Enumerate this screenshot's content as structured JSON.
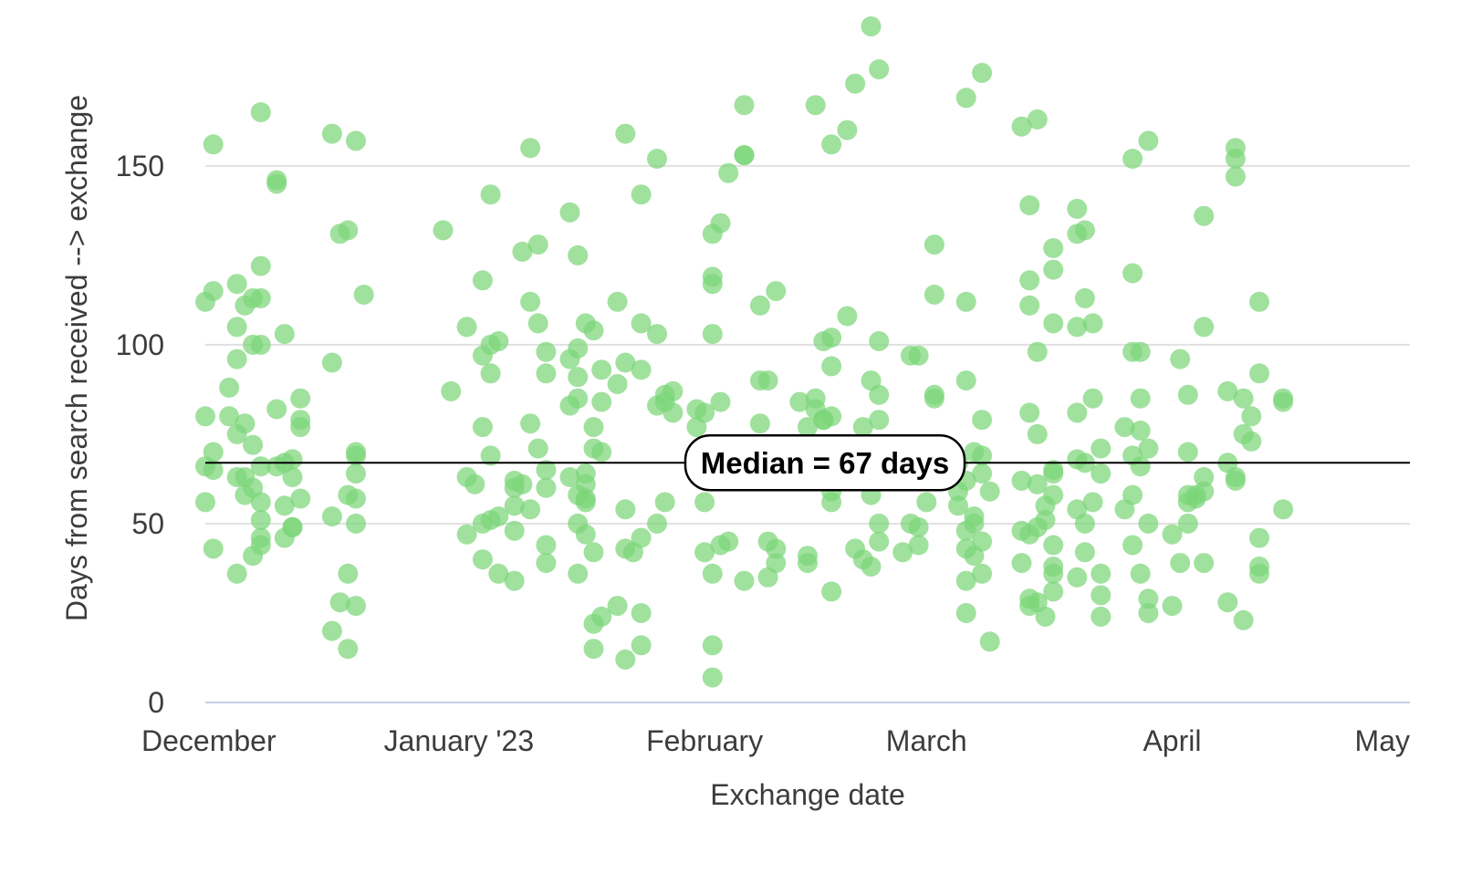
{
  "chart_data": {
    "type": "scatter",
    "title": "",
    "xlabel": "Exchange date",
    "ylabel": "Days from search received --> exchange",
    "x_ticks": [
      "December",
      "January '23",
      "February",
      "March",
      "April",
      "May"
    ],
    "x_range": [
      "2022-11-30",
      "2023-05-01"
    ],
    "y_ticks": [
      0,
      50,
      100,
      150
    ],
    "ylim": [
      0,
      190
    ],
    "grid": true,
    "point_color": "#7bd679",
    "median": {
      "value": 67,
      "label": "Median = 67 days"
    },
    "points": [
      [
        "2022-11-30",
        112
      ],
      [
        "2022-11-30",
        80
      ],
      [
        "2022-11-30",
        66
      ],
      [
        "2022-11-30",
        56
      ],
      [
        "2022-12-01",
        156
      ],
      [
        "2022-12-01",
        115
      ],
      [
        "2022-12-01",
        70
      ],
      [
        "2022-12-01",
        65
      ],
      [
        "2022-12-01",
        43
      ],
      [
        "2022-12-03",
        88
      ],
      [
        "2022-12-03",
        80
      ],
      [
        "2022-12-04",
        117
      ],
      [
        "2022-12-04",
        105
      ],
      [
        "2022-12-04",
        96
      ],
      [
        "2022-12-04",
        75
      ],
      [
        "2022-12-04",
        63
      ],
      [
        "2022-12-04",
        36
      ],
      [
        "2022-12-05",
        111
      ],
      [
        "2022-12-05",
        78
      ],
      [
        "2022-12-05",
        63
      ],
      [
        "2022-12-05",
        58
      ],
      [
        "2022-12-06",
        113
      ],
      [
        "2022-12-06",
        100
      ],
      [
        "2022-12-06",
        72
      ],
      [
        "2022-12-06",
        60
      ],
      [
        "2022-12-06",
        41
      ],
      [
        "2022-12-07",
        165
      ],
      [
        "2022-12-07",
        122
      ],
      [
        "2022-12-07",
        113
      ],
      [
        "2022-12-07",
        100
      ],
      [
        "2022-12-07",
        66
      ],
      [
        "2022-12-07",
        56
      ],
      [
        "2022-12-07",
        51
      ],
      [
        "2022-12-07",
        46
      ],
      [
        "2022-12-07",
        44
      ],
      [
        "2022-12-09",
        146
      ],
      [
        "2022-12-09",
        145
      ],
      [
        "2022-12-09",
        82
      ],
      [
        "2022-12-09",
        66
      ],
      [
        "2022-12-10",
        103
      ],
      [
        "2022-12-10",
        67
      ],
      [
        "2022-12-10",
        55
      ],
      [
        "2022-12-10",
        46
      ],
      [
        "2022-12-11",
        68
      ],
      [
        "2022-12-11",
        63
      ],
      [
        "2022-12-11",
        49
      ],
      [
        "2022-12-11",
        49
      ],
      [
        "2022-12-12",
        85
      ],
      [
        "2022-12-12",
        79
      ],
      [
        "2022-12-12",
        77
      ],
      [
        "2022-12-12",
        57
      ],
      [
        "2022-12-16",
        159
      ],
      [
        "2022-12-16",
        95
      ],
      [
        "2022-12-16",
        52
      ],
      [
        "2022-12-16",
        20
      ],
      [
        "2022-12-17",
        131
      ],
      [
        "2022-12-17",
        28
      ],
      [
        "2022-12-18",
        132
      ],
      [
        "2022-12-18",
        58
      ],
      [
        "2022-12-18",
        36
      ],
      [
        "2022-12-18",
        15
      ],
      [
        "2022-12-19",
        157
      ],
      [
        "2022-12-19",
        70
      ],
      [
        "2022-12-19",
        69
      ],
      [
        "2022-12-19",
        64
      ],
      [
        "2022-12-19",
        57
      ],
      [
        "2022-12-19",
        50
      ],
      [
        "2022-12-19",
        27
      ],
      [
        "2022-12-20",
        114
      ],
      [
        "2022-12-30",
        132
      ],
      [
        "2022-12-31",
        87
      ],
      [
        "2023-01-02",
        105
      ],
      [
        "2023-01-02",
        63
      ],
      [
        "2023-01-02",
        47
      ],
      [
        "2023-01-03",
        61
      ],
      [
        "2023-01-04",
        118
      ],
      [
        "2023-01-04",
        97
      ],
      [
        "2023-01-04",
        77
      ],
      [
        "2023-01-04",
        50
      ],
      [
        "2023-01-04",
        40
      ],
      [
        "2023-01-05",
        142
      ],
      [
        "2023-01-05",
        100
      ],
      [
        "2023-01-05",
        92
      ],
      [
        "2023-01-05",
        69
      ],
      [
        "2023-01-05",
        51
      ],
      [
        "2023-01-06",
        101
      ],
      [
        "2023-01-06",
        52
      ],
      [
        "2023-01-06",
        36
      ],
      [
        "2023-01-08",
        62
      ],
      [
        "2023-01-08",
        60
      ],
      [
        "2023-01-08",
        55
      ],
      [
        "2023-01-08",
        48
      ],
      [
        "2023-01-08",
        34
      ],
      [
        "2023-01-09",
        126
      ],
      [
        "2023-01-09",
        61
      ],
      [
        "2023-01-10",
        155
      ],
      [
        "2023-01-10",
        112
      ],
      [
        "2023-01-10",
        78
      ],
      [
        "2023-01-10",
        54
      ],
      [
        "2023-01-11",
        128
      ],
      [
        "2023-01-11",
        106
      ],
      [
        "2023-01-11",
        71
      ],
      [
        "2023-01-12",
        98
      ],
      [
        "2023-01-12",
        92
      ],
      [
        "2023-01-12",
        65
      ],
      [
        "2023-01-12",
        60
      ],
      [
        "2023-01-12",
        44
      ],
      [
        "2023-01-12",
        39
      ],
      [
        "2023-01-15",
        137
      ],
      [
        "2023-01-15",
        96
      ],
      [
        "2023-01-15",
        83
      ],
      [
        "2023-01-15",
        63
      ],
      [
        "2023-01-16",
        125
      ],
      [
        "2023-01-16",
        99
      ],
      [
        "2023-01-16",
        91
      ],
      [
        "2023-01-16",
        85
      ],
      [
        "2023-01-16",
        58
      ],
      [
        "2023-01-16",
        50
      ],
      [
        "2023-01-16",
        36
      ],
      [
        "2023-01-17",
        106
      ],
      [
        "2023-01-17",
        64
      ],
      [
        "2023-01-17",
        61
      ],
      [
        "2023-01-17",
        57
      ],
      [
        "2023-01-17",
        56
      ],
      [
        "2023-01-17",
        47
      ],
      [
        "2023-01-18",
        104
      ],
      [
        "2023-01-18",
        77
      ],
      [
        "2023-01-18",
        71
      ],
      [
        "2023-01-18",
        42
      ],
      [
        "2023-01-18",
        22
      ],
      [
        "2023-01-18",
        15
      ],
      [
        "2023-01-19",
        93
      ],
      [
        "2023-01-19",
        84
      ],
      [
        "2023-01-19",
        70
      ],
      [
        "2023-01-19",
        24
      ],
      [
        "2023-01-21",
        112
      ],
      [
        "2023-01-21",
        89
      ],
      [
        "2023-01-21",
        27
      ],
      [
        "2023-01-22",
        159
      ],
      [
        "2023-01-22",
        95
      ],
      [
        "2023-01-22",
        54
      ],
      [
        "2023-01-22",
        43
      ],
      [
        "2023-01-22",
        12
      ],
      [
        "2023-01-24",
        142
      ],
      [
        "2023-01-24",
        106
      ],
      [
        "2023-01-24",
        93
      ],
      [
        "2023-01-24",
        46
      ],
      [
        "2023-01-24",
        25
      ],
      [
        "2023-01-24",
        16
      ],
      [
        "2023-01-23",
        42
      ],
      [
        "2023-01-26",
        152
      ],
      [
        "2023-01-26",
        103
      ],
      [
        "2023-01-26",
        83
      ],
      [
        "2023-01-26",
        50
      ],
      [
        "2023-01-27",
        86
      ],
      [
        "2023-01-27",
        84
      ],
      [
        "2023-01-27",
        56
      ],
      [
        "2023-01-28",
        87
      ],
      [
        "2023-01-28",
        81
      ],
      [
        "2023-01-31",
        82
      ],
      [
        "2023-01-31",
        77
      ],
      [
        "2023-02-01",
        81
      ],
      [
        "2023-02-01",
        63
      ],
      [
        "2023-02-01",
        56
      ],
      [
        "2023-02-01",
        42
      ],
      [
        "2023-02-02",
        131
      ],
      [
        "2023-02-02",
        119
      ],
      [
        "2023-02-02",
        117
      ],
      [
        "2023-02-02",
        103
      ],
      [
        "2023-02-02",
        36
      ],
      [
        "2023-02-02",
        16
      ],
      [
        "2023-02-02",
        7
      ],
      [
        "2023-02-03",
        134
      ],
      [
        "2023-02-03",
        84
      ],
      [
        "2023-02-03",
        44
      ],
      [
        "2023-02-04",
        148
      ],
      [
        "2023-02-04",
        45
      ],
      [
        "2023-02-06",
        167
      ],
      [
        "2023-02-06",
        153
      ],
      [
        "2023-02-06",
        153
      ],
      [
        "2023-02-06",
        34
      ],
      [
        "2023-02-08",
        111
      ],
      [
        "2023-02-08",
        90
      ],
      [
        "2023-02-08",
        78
      ],
      [
        "2023-02-09",
        90
      ],
      [
        "2023-02-09",
        45
      ],
      [
        "2023-02-09",
        35
      ],
      [
        "2023-02-10",
        115
      ],
      [
        "2023-02-10",
        43
      ],
      [
        "2023-02-10",
        39
      ],
      [
        "2023-02-13",
        84
      ],
      [
        "2023-02-14",
        77
      ],
      [
        "2023-02-14",
        41
      ],
      [
        "2023-02-14",
        39
      ],
      [
        "2023-02-15",
        167
      ],
      [
        "2023-02-15",
        85
      ],
      [
        "2023-02-15",
        82
      ],
      [
        "2023-02-16",
        101
      ],
      [
        "2023-02-16",
        79
      ],
      [
        "2023-02-16",
        79
      ],
      [
        "2023-02-17",
        156
      ],
      [
        "2023-02-17",
        102
      ],
      [
        "2023-02-17",
        94
      ],
      [
        "2023-02-17",
        80
      ],
      [
        "2023-02-17",
        59
      ],
      [
        "2023-02-17",
        56
      ],
      [
        "2023-02-17",
        31
      ],
      [
        "2023-02-19",
        160
      ],
      [
        "2023-02-19",
        108
      ],
      [
        "2023-02-20",
        173
      ],
      [
        "2023-02-20",
        43
      ],
      [
        "2023-02-21",
        77
      ],
      [
        "2023-02-21",
        40
      ],
      [
        "2023-02-22",
        189
      ],
      [
        "2023-02-22",
        90
      ],
      [
        "2023-02-22",
        58
      ],
      [
        "2023-02-22",
        38
      ],
      [
        "2023-02-23",
        177
      ],
      [
        "2023-02-23",
        101
      ],
      [
        "2023-02-23",
        86
      ],
      [
        "2023-02-23",
        79
      ],
      [
        "2023-02-23",
        50
      ],
      [
        "2023-02-23",
        45
      ],
      [
        "2023-02-26",
        42
      ],
      [
        "2023-02-27",
        97
      ],
      [
        "2023-02-27",
        64
      ],
      [
        "2023-02-27",
        50
      ],
      [
        "2023-02-28",
        97
      ],
      [
        "2023-02-28",
        71
      ],
      [
        "2023-02-28",
        70
      ],
      [
        "2023-02-28",
        62
      ],
      [
        "2023-02-28",
        49
      ],
      [
        "2023-02-28",
        44
      ],
      [
        "2023-03-01",
        56
      ],
      [
        "2023-03-02",
        128
      ],
      [
        "2023-03-02",
        114
      ],
      [
        "2023-03-02",
        86
      ],
      [
        "2023-03-02",
        85
      ],
      [
        "2023-03-05",
        67
      ],
      [
        "2023-03-05",
        59
      ],
      [
        "2023-03-05",
        55
      ],
      [
        "2023-03-06",
        169
      ],
      [
        "2023-03-06",
        112
      ],
      [
        "2023-03-06",
        90
      ],
      [
        "2023-03-06",
        62
      ],
      [
        "2023-03-06",
        48
      ],
      [
        "2023-03-06",
        43
      ],
      [
        "2023-03-06",
        34
      ],
      [
        "2023-03-06",
        25
      ],
      [
        "2023-03-07",
        70
      ],
      [
        "2023-03-07",
        52
      ],
      [
        "2023-03-07",
        50
      ],
      [
        "2023-03-07",
        41
      ],
      [
        "2023-03-08",
        176
      ],
      [
        "2023-03-08",
        79
      ],
      [
        "2023-03-08",
        69
      ],
      [
        "2023-03-08",
        64
      ],
      [
        "2023-03-08",
        45
      ],
      [
        "2023-03-08",
        36
      ],
      [
        "2023-03-09",
        59
      ],
      [
        "2023-03-09",
        17
      ],
      [
        "2023-03-13",
        161
      ],
      [
        "2023-03-13",
        62
      ],
      [
        "2023-03-13",
        48
      ],
      [
        "2023-03-13",
        39
      ],
      [
        "2023-03-14",
        139
      ],
      [
        "2023-03-14",
        118
      ],
      [
        "2023-03-14",
        111
      ],
      [
        "2023-03-14",
        81
      ],
      [
        "2023-03-14",
        47
      ],
      [
        "2023-03-14",
        29
      ],
      [
        "2023-03-14",
        27
      ],
      [
        "2023-03-15",
        163
      ],
      [
        "2023-03-15",
        98
      ],
      [
        "2023-03-15",
        75
      ],
      [
        "2023-03-15",
        61
      ],
      [
        "2023-03-15",
        49
      ],
      [
        "2023-03-15",
        28
      ],
      [
        "2023-03-16",
        55
      ],
      [
        "2023-03-16",
        51
      ],
      [
        "2023-03-16",
        24
      ],
      [
        "2023-03-17",
        127
      ],
      [
        "2023-03-17",
        121
      ],
      [
        "2023-03-17",
        106
      ],
      [
        "2023-03-17",
        65
      ],
      [
        "2023-03-17",
        64
      ],
      [
        "2023-03-17",
        58
      ],
      [
        "2023-03-17",
        44
      ],
      [
        "2023-03-17",
        38
      ],
      [
        "2023-03-17",
        36
      ],
      [
        "2023-03-17",
        31
      ],
      [
        "2023-03-20",
        138
      ],
      [
        "2023-03-20",
        131
      ],
      [
        "2023-03-20",
        105
      ],
      [
        "2023-03-20",
        81
      ],
      [
        "2023-03-20",
        68
      ],
      [
        "2023-03-20",
        54
      ],
      [
        "2023-03-20",
        35
      ],
      [
        "2023-03-21",
        132
      ],
      [
        "2023-03-21",
        113
      ],
      [
        "2023-03-21",
        67
      ],
      [
        "2023-03-21",
        50
      ],
      [
        "2023-03-21",
        42
      ],
      [
        "2023-03-22",
        106
      ],
      [
        "2023-03-22",
        85
      ],
      [
        "2023-03-22",
        56
      ],
      [
        "2023-03-23",
        71
      ],
      [
        "2023-03-23",
        64
      ],
      [
        "2023-03-23",
        36
      ],
      [
        "2023-03-23",
        30
      ],
      [
        "2023-03-23",
        24
      ],
      [
        "2023-03-26",
        77
      ],
      [
        "2023-03-26",
        54
      ],
      [
        "2023-03-27",
        152
      ],
      [
        "2023-03-27",
        120
      ],
      [
        "2023-03-27",
        98
      ],
      [
        "2023-03-27",
        69
      ],
      [
        "2023-03-27",
        58
      ],
      [
        "2023-03-27",
        44
      ],
      [
        "2023-03-28",
        98
      ],
      [
        "2023-03-28",
        85
      ],
      [
        "2023-03-28",
        76
      ],
      [
        "2023-03-28",
        66
      ],
      [
        "2023-03-28",
        36
      ],
      [
        "2023-03-29",
        157
      ],
      [
        "2023-03-29",
        71
      ],
      [
        "2023-03-29",
        50
      ],
      [
        "2023-03-29",
        29
      ],
      [
        "2023-03-29",
        25
      ],
      [
        "2023-04-01",
        47
      ],
      [
        "2023-04-01",
        27
      ],
      [
        "2023-04-02",
        96
      ],
      [
        "2023-04-02",
        39
      ],
      [
        "2023-04-03",
        70
      ],
      [
        "2023-04-03",
        58
      ],
      [
        "2023-04-03",
        56
      ],
      [
        "2023-04-03",
        50
      ],
      [
        "2023-04-03",
        86
      ],
      [
        "2023-04-04",
        58
      ],
      [
        "2023-04-04",
        57
      ],
      [
        "2023-04-05",
        136
      ],
      [
        "2023-04-05",
        105
      ],
      [
        "2023-04-05",
        63
      ],
      [
        "2023-04-05",
        59
      ],
      [
        "2023-04-05",
        39
      ],
      [
        "2023-04-08",
        87
      ],
      [
        "2023-04-08",
        67
      ],
      [
        "2023-04-08",
        28
      ],
      [
        "2023-04-09",
        155
      ],
      [
        "2023-04-09",
        152
      ],
      [
        "2023-04-09",
        147
      ],
      [
        "2023-04-09",
        63
      ],
      [
        "2023-04-09",
        62
      ],
      [
        "2023-04-10",
        85
      ],
      [
        "2023-04-10",
        75
      ],
      [
        "2023-04-10",
        23
      ],
      [
        "2023-04-11",
        80
      ],
      [
        "2023-04-11",
        73
      ],
      [
        "2023-04-12",
        112
      ],
      [
        "2023-04-12",
        92
      ],
      [
        "2023-04-12",
        46
      ],
      [
        "2023-04-12",
        38
      ],
      [
        "2023-04-12",
        36
      ],
      [
        "2023-04-15",
        85
      ],
      [
        "2023-04-15",
        84
      ],
      [
        "2023-04-15",
        54
      ]
    ]
  }
}
